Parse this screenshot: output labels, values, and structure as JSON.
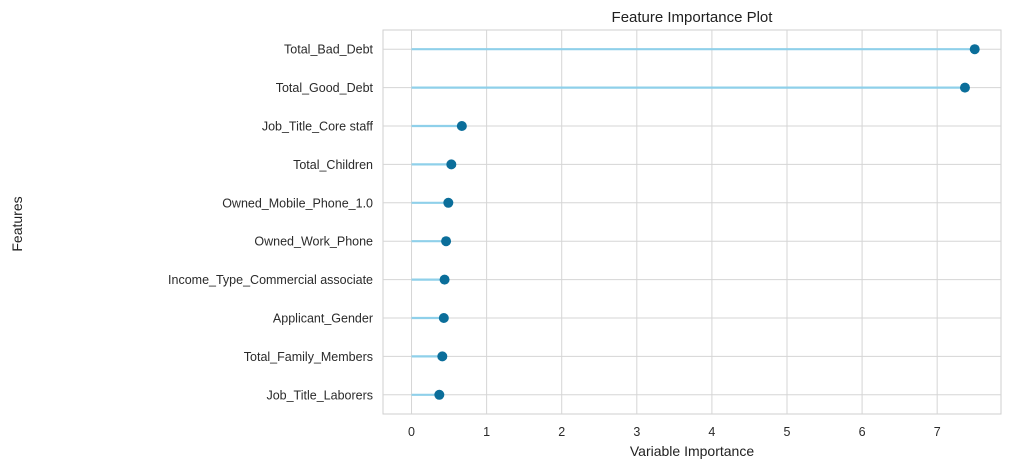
{
  "chart_data": {
    "type": "lollipop",
    "title": "Feature Importance Plot",
    "xlabel": "Variable Importance",
    "ylabel": "Features",
    "xlim": [
      -0.38,
      7.85
    ],
    "xticks": [
      0,
      1,
      2,
      3,
      4,
      5,
      6,
      7
    ],
    "grid": true,
    "categories": [
      "Total_Bad_Debt",
      "Total_Good_Debt",
      "Job_Title_Core staff",
      "Total_Children",
      "Owned_Mobile_Phone_1.0",
      "Owned_Work_Phone",
      "Income_Type_Commercial associate",
      "Applicant_Gender",
      "Total_Family_Members",
      "Job_Title_Laborers"
    ],
    "values": [
      7.5,
      7.37,
      0.67,
      0.53,
      0.49,
      0.46,
      0.44,
      0.43,
      0.41,
      0.37
    ],
    "colors": {
      "stem": "#8fd0ea",
      "marker": "#0b6e9a",
      "grid": "#d5d5d5",
      "spine": "#cfcfcf"
    }
  }
}
